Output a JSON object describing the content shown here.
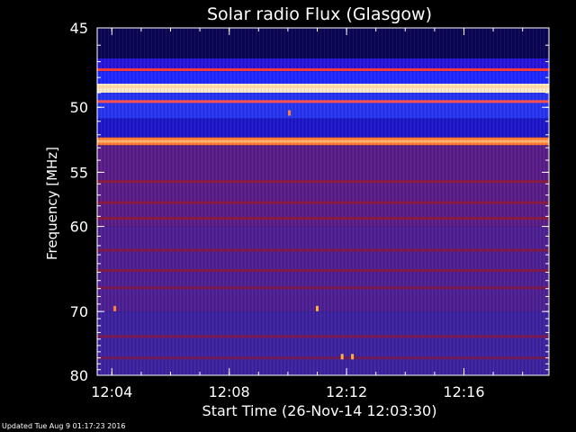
{
  "chart_data": {
    "type": "heatmap",
    "title": "Solar radio Flux (Glasgow)",
    "xlabel": "Start Time (26-Nov-14 12:03:30)",
    "ylabel_main": "Frequency ",
    "ylabel_unit": "[MHz]",
    "x_range_minutes": [
      3.5,
      18.9
    ],
    "x_ticks": [
      {
        "minute": 4,
        "label": "12:04"
      },
      {
        "minute": 8,
        "label": "12:08"
      },
      {
        "minute": 12,
        "label": "12:12"
      },
      {
        "minute": 16,
        "label": "12:16"
      }
    ],
    "y_scale": "reciprocal",
    "y_range": [
      45,
      80
    ],
    "y_ticks": [
      45,
      50,
      55,
      60,
      70,
      80
    ],
    "y_minor_step": 1,
    "bands": [
      {
        "f_from": 45,
        "f_to": 46.8,
        "color": "#090552"
      },
      {
        "f_from": 46.8,
        "f_to": 47.6,
        "color": "#2614d8"
      },
      {
        "f_from": 47.6,
        "f_to": 48.4,
        "color": "#1e28ff"
      },
      {
        "f_from": 48.4,
        "f_to": 49.0,
        "color": "#ffe9c8"
      },
      {
        "f_from": 49.0,
        "f_to": 50.8,
        "color": "#2634f0"
      },
      {
        "f_from": 50.8,
        "f_to": 52.2,
        "color": "#1c16c8"
      },
      {
        "f_from": 52.2,
        "f_to": 52.8,
        "color": "#ff7a30"
      },
      {
        "f_from": 52.8,
        "f_to": 60,
        "color": "#5a1c88"
      },
      {
        "f_from": 60,
        "f_to": 70,
        "color": "#4d1f92"
      },
      {
        "f_from": 70,
        "f_to": 80,
        "color": "#3d22a0"
      }
    ],
    "lines": [
      {
        "f": 47.5,
        "color": "#ff3a3a"
      },
      {
        "f": 48.6,
        "color": "#ffd9a0"
      },
      {
        "f": 49.6,
        "color": "#ff5050"
      },
      {
        "f": 52.5,
        "color": "#ffb070"
      },
      {
        "f": 55.8,
        "color": "#8a1a40"
      },
      {
        "f": 57.7,
        "color": "#8a1a40"
      },
      {
        "f": 59.2,
        "color": "#8a1a40"
      },
      {
        "f": 62.5,
        "color": "#801a48"
      },
      {
        "f": 64.8,
        "color": "#801a48"
      },
      {
        "f": 66.9,
        "color": "#7a1a50"
      },
      {
        "f": 73.6,
        "color": "#7a1a50"
      },
      {
        "f": 77.0,
        "color": "#6c1a58"
      }
    ],
    "bursts": [
      {
        "minute": 11.0,
        "f": 69.6,
        "color": "#ffb040"
      },
      {
        "minute": 10.05,
        "f": 50.4,
        "color": "#ff8040"
      },
      {
        "minute": 4.1,
        "f": 69.6,
        "color": "#ff8040"
      },
      {
        "minute": 11.85,
        "f": 76.8,
        "color": "#ffb040"
      },
      {
        "minute": 12.2,
        "f": 76.8,
        "color": "#ffb040"
      }
    ],
    "colors": {
      "background": "#000000",
      "text": "#ffffff",
      "low_intensity": "#1a10c0",
      "high_intensity": "#fff2dd"
    }
  },
  "footer": "Updated Tue Aug  9 01:17:23 2016"
}
